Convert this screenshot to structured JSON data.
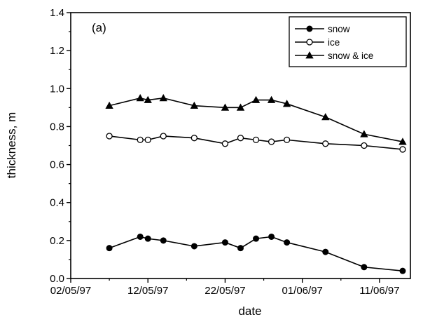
{
  "chart_data": {
    "type": "line",
    "panel_label": "(a)",
    "xlabel": "date",
    "ylabel": "thickness, m",
    "xlim": [
      "1997-05-02",
      "1997-06-15"
    ],
    "ylim": [
      0.0,
      1.4
    ],
    "x_ticks": [
      {
        "date": "1997-05-02",
        "label": "02/05/97"
      },
      {
        "date": "1997-05-12",
        "label": "12/05/97"
      },
      {
        "date": "1997-05-22",
        "label": "22/05/97"
      },
      {
        "date": "1997-06-01",
        "label": "01/06/97"
      },
      {
        "date": "1997-06-11",
        "label": "11/06/97"
      }
    ],
    "y_ticks": [
      "0.0",
      "0.2",
      "0.4",
      "0.6",
      "0.8",
      "1.0",
      "1.2",
      "1.4"
    ],
    "grid": false,
    "legend_position": "top-right",
    "series": [
      {
        "name": "snow",
        "marker": "filled-circle",
        "color": "#000000",
        "points": [
          {
            "x": "1997-05-07",
            "y": 0.16
          },
          {
            "x": "1997-05-11",
            "y": 0.22
          },
          {
            "x": "1997-05-12",
            "y": 0.21
          },
          {
            "x": "1997-05-14",
            "y": 0.2
          },
          {
            "x": "1997-05-18",
            "y": 0.17
          },
          {
            "x": "1997-05-22",
            "y": 0.19
          },
          {
            "x": "1997-05-24",
            "y": 0.16
          },
          {
            "x": "1997-05-26",
            "y": 0.21
          },
          {
            "x": "1997-05-28",
            "y": 0.22
          },
          {
            "x": "1997-05-30",
            "y": 0.19
          },
          {
            "x": "1997-06-04",
            "y": 0.14
          },
          {
            "x": "1997-06-09",
            "y": 0.06
          },
          {
            "x": "1997-06-14",
            "y": 0.04
          }
        ]
      },
      {
        "name": "ice",
        "marker": "open-circle",
        "color": "#000000",
        "points": [
          {
            "x": "1997-05-07",
            "y": 0.75
          },
          {
            "x": "1997-05-11",
            "y": 0.73
          },
          {
            "x": "1997-05-12",
            "y": 0.73
          },
          {
            "x": "1997-05-14",
            "y": 0.75
          },
          {
            "x": "1997-05-18",
            "y": 0.74
          },
          {
            "x": "1997-05-22",
            "y": 0.71
          },
          {
            "x": "1997-05-24",
            "y": 0.74
          },
          {
            "x": "1997-05-26",
            "y": 0.73
          },
          {
            "x": "1997-05-28",
            "y": 0.72
          },
          {
            "x": "1997-05-30",
            "y": 0.73
          },
          {
            "x": "1997-06-04",
            "y": 0.71
          },
          {
            "x": "1997-06-09",
            "y": 0.7
          },
          {
            "x": "1997-06-14",
            "y": 0.68
          }
        ]
      },
      {
        "name": "snow & ice",
        "marker": "filled-triangle",
        "color": "#000000",
        "points": [
          {
            "x": "1997-05-07",
            "y": 0.91
          },
          {
            "x": "1997-05-11",
            "y": 0.95
          },
          {
            "x": "1997-05-12",
            "y": 0.94
          },
          {
            "x": "1997-05-14",
            "y": 0.95
          },
          {
            "x": "1997-05-18",
            "y": 0.91
          },
          {
            "x": "1997-05-22",
            "y": 0.9
          },
          {
            "x": "1997-05-24",
            "y": 0.9
          },
          {
            "x": "1997-05-26",
            "y": 0.94
          },
          {
            "x": "1997-05-28",
            "y": 0.94
          },
          {
            "x": "1997-05-30",
            "y": 0.92
          },
          {
            "x": "1997-06-04",
            "y": 0.85
          },
          {
            "x": "1997-06-09",
            "y": 0.76
          },
          {
            "x": "1997-06-14",
            "y": 0.72
          }
        ]
      }
    ]
  }
}
